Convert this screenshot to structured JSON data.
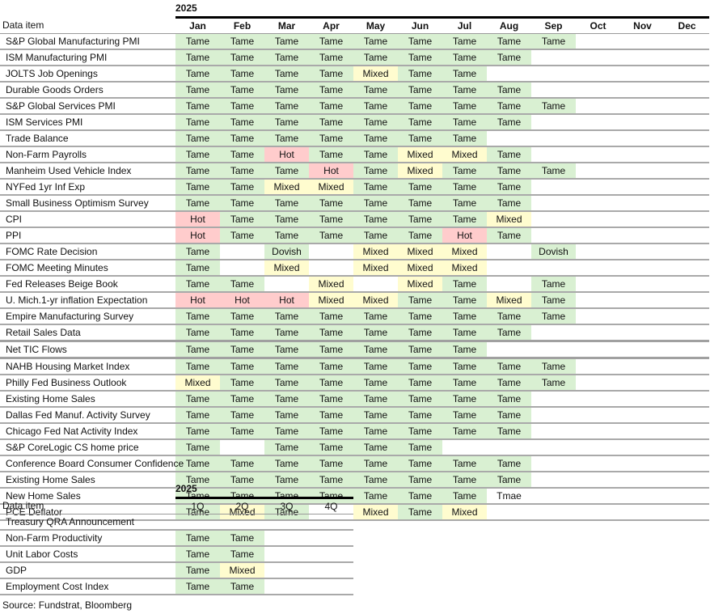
{
  "colors": {
    "tame": "#d9f0d2",
    "mixed": "#fffccf",
    "hot": "#ffcccc",
    "dovish": "#d9f0d2"
  },
  "monthly": {
    "year": "2025",
    "label_header": "Data item",
    "months": [
      "Jan",
      "Feb",
      "Mar",
      "Apr",
      "May",
      "Jun",
      "Jul",
      "Aug",
      "Sep",
      "Oct",
      "Nov",
      "Dec"
    ],
    "rows": [
      {
        "label": "S&P Global Manufacturing PMI",
        "values": [
          "Tame",
          "Tame",
          "Tame",
          "Tame",
          "Tame",
          "Tame",
          "Tame",
          "Tame",
          "Tame",
          "",
          "",
          ""
        ]
      },
      {
        "label": "ISM Manufacturing PMI",
        "values": [
          "Tame",
          "Tame",
          "Tame",
          "Tame",
          "Tame",
          "Tame",
          "Tame",
          "Tame",
          "",
          "",
          "",
          ""
        ]
      },
      {
        "label": "JOLTS Job Openings",
        "values": [
          "Tame",
          "Tame",
          "Tame",
          "Tame",
          "Mixed",
          "Tame",
          "Tame",
          "",
          "",
          "",
          "",
          ""
        ]
      },
      {
        "label": "Durable Goods Orders",
        "values": [
          "Tame",
          "Tame",
          "Tame",
          "Tame",
          "Tame",
          "Tame",
          "Tame",
          "Tame",
          "",
          "",
          "",
          ""
        ]
      },
      {
        "label": "S&P Global Services PMI",
        "values": [
          "Tame",
          "Tame",
          "Tame",
          "Tame",
          "Tame",
          "Tame",
          "Tame",
          "Tame",
          "Tame",
          "",
          "",
          ""
        ]
      },
      {
        "label": "ISM Services PMI",
        "values": [
          "Tame",
          "Tame",
          "Tame",
          "Tame",
          "Tame",
          "Tame",
          "Tame",
          "Tame",
          "",
          "",
          "",
          ""
        ]
      },
      {
        "label": "Trade Balance",
        "values": [
          "Tame",
          "Tame",
          "Tame",
          "Tame",
          "Tame",
          "Tame",
          "Tame",
          "",
          "",
          "",
          "",
          ""
        ]
      },
      {
        "label": "Non-Farm Payrolls",
        "values": [
          "Tame",
          "Tame",
          "Hot",
          "Tame",
          "Tame",
          "Mixed",
          "Mixed",
          "Tame",
          "",
          "",
          "",
          ""
        ]
      },
      {
        "label": "Manheim Used Vehicle Index",
        "values": [
          "Tame",
          "Tame",
          "Tame",
          "Hot",
          "Tame",
          "Mixed",
          "Tame",
          "Tame",
          "Tame",
          "",
          "",
          ""
        ]
      },
      {
        "label": "NYFed 1yr Inf Exp",
        "values": [
          "Tame",
          "Tame",
          "Mixed",
          "Mixed",
          "Tame",
          "Tame",
          "Tame",
          "Tame",
          "",
          "",
          "",
          ""
        ]
      },
      {
        "label": "Small Business Optimism Survey",
        "values": [
          "Tame",
          "Tame",
          "Tame",
          "Tame",
          "Tame",
          "Tame",
          "Tame",
          "Tame",
          "",
          "",
          "",
          ""
        ]
      },
      {
        "label": "CPI",
        "values": [
          "Hot",
          "Tame",
          "Tame",
          "Tame",
          "Tame",
          "Tame",
          "Tame",
          "Mixed",
          "",
          "",
          "",
          ""
        ]
      },
      {
        "label": "PPI",
        "values": [
          "Hot",
          "Tame",
          "Tame",
          "Tame",
          "Tame",
          "Tame",
          "Hot",
          "Tame",
          "",
          "",
          "",
          ""
        ]
      },
      {
        "label": "FOMC Rate Decision",
        "values": [
          "Tame",
          "",
          "Dovish",
          "",
          "Mixed",
          "Mixed",
          "Mixed",
          "",
          "Dovish",
          "",
          "",
          ""
        ]
      },
      {
        "label": "FOMC Meeting Minutes",
        "values": [
          "Tame",
          "",
          "Mixed",
          "",
          "Mixed",
          "Mixed",
          "Mixed",
          "",
          "",
          "",
          "",
          ""
        ]
      },
      {
        "label": "Fed Releases Beige Book",
        "values": [
          "Tame",
          "Tame",
          "",
          "Mixed",
          "",
          "Mixed",
          "Tame",
          "",
          "Tame",
          "",
          "",
          ""
        ]
      },
      {
        "label": "U. Mich.1-yr  inflation Expectation",
        "values": [
          "Hot",
          "Hot",
          "Hot",
          "Mixed",
          "Mixed",
          "Tame",
          "Tame",
          "Mixed",
          "Tame",
          "",
          "",
          ""
        ]
      },
      {
        "label": "Empire Manufacturing Survey",
        "values": [
          "Tame",
          "Tame",
          "Tame",
          "Tame",
          "Tame",
          "Tame",
          "Tame",
          "Tame",
          "Tame",
          "",
          "",
          ""
        ]
      },
      {
        "label": "Retail Sales Data",
        "values": [
          "Tame",
          "Tame",
          "Tame",
          "Tame",
          "Tame",
          "Tame",
          "Tame",
          "Tame",
          "",
          "",
          "",
          ""
        ]
      },
      {
        "label": "Net TIC Flows",
        "values": [
          "Tame",
          "Tame",
          "Tame",
          "Tame",
          "Tame",
          "Tame",
          "Tame",
          "",
          "",
          "",
          "",
          ""
        ]
      },
      {
        "label": "NAHB Housing Market Index",
        "values": [
          "Tame",
          "Tame",
          "Tame",
          "Tame",
          "Tame",
          "Tame",
          "Tame",
          "Tame",
          "Tame",
          "",
          "",
          ""
        ]
      },
      {
        "label": "Philly Fed Business Outlook",
        "values": [
          "Mixed",
          "Tame",
          "Tame",
          "Tame",
          "Tame",
          "Tame",
          "Tame",
          "Tame",
          "Tame",
          "",
          "",
          ""
        ]
      },
      {
        "label": "Existing Home Sales",
        "values": [
          "Tame",
          "Tame",
          "Tame",
          "Tame",
          "Tame",
          "Tame",
          "Tame",
          "Tame",
          "",
          "",
          "",
          ""
        ]
      },
      {
        "label": "Dallas Fed Manuf. Activity Survey",
        "values": [
          "Tame",
          "Tame",
          "Tame",
          "Tame",
          "Tame",
          "Tame",
          "Tame",
          "Tame",
          "",
          "",
          "",
          ""
        ]
      },
      {
        "label": "Chicago Fed Nat Activity Index",
        "values": [
          "Tame",
          "Tame",
          "Tame",
          "Tame",
          "Tame",
          "Tame",
          "Tame",
          "Tame",
          "",
          "",
          "",
          ""
        ]
      },
      {
        "label": "S&P CoreLogic CS home price",
        "values": [
          "Tame",
          "",
          "Tame",
          "Tame",
          "Tame",
          "Tame",
          "",
          "",
          "",
          "",
          "",
          ""
        ]
      },
      {
        "label": "Conference Board Consumer Confidence",
        "values": [
          "Tame",
          "Tame",
          "Tame",
          "Tame",
          "Tame",
          "Tame",
          "Tame",
          "Tame",
          "",
          "",
          "",
          ""
        ]
      },
      {
        "label": "Existing Home Sales",
        "values": [
          "Tame",
          "Tame",
          "Tame",
          "Tame",
          "Tame",
          "Tame",
          "Tame",
          "Tame",
          "",
          "",
          "",
          ""
        ]
      },
      {
        "label": "New Home Sales",
        "values": [
          "Tame",
          "Tame",
          "Tame",
          "Tame",
          "Tame",
          "Tame",
          "Tame",
          "Tmae",
          "",
          "",
          "",
          ""
        ]
      },
      {
        "label": "PCE Deflator",
        "values": [
          "Tame",
          "Mixed",
          "Tame",
          "",
          "Mixed",
          "Tame",
          "Mixed",
          "",
          "",
          "",
          "",
          ""
        ]
      }
    ]
  },
  "quarterly": {
    "year": "2025",
    "label_header": "Data item",
    "quarters": [
      "1Q",
      "2Q",
      "3Q",
      "4Q"
    ],
    "rows": [
      {
        "label": "Treasury QRA Announcement",
        "values": [
          "",
          "",
          "",
          ""
        ]
      },
      {
        "label": "Non-Farm Productivity",
        "values": [
          "Tame",
          "Tame",
          "",
          ""
        ]
      },
      {
        "label": "Unit Labor Costs",
        "values": [
          "Tame",
          "Tame",
          "",
          ""
        ]
      },
      {
        "label": "GDP",
        "values": [
          "Tame",
          "Mixed",
          "",
          ""
        ]
      },
      {
        "label": "Employment Cost Index",
        "values": [
          "Tame",
          "Tame",
          "",
          ""
        ]
      }
    ]
  },
  "footer": {
    "source": "Source: Fundstrat, Bloomberg"
  }
}
